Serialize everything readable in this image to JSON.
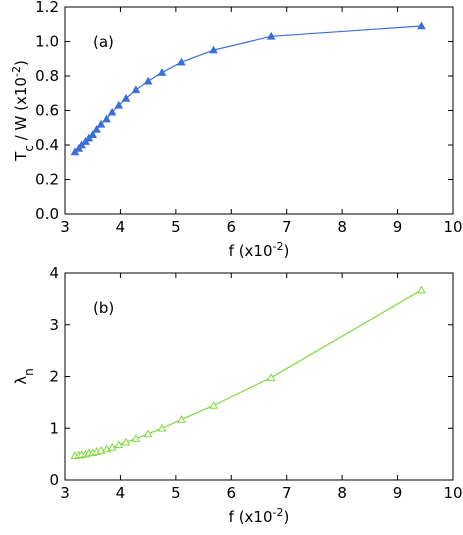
{
  "chart_data": [
    {
      "type": "line",
      "annotation": "(a)",
      "xlabel": [
        {
          "text": "f  (x10",
          "baseline": "normal"
        },
        {
          "text": "-2",
          "baseline": "super"
        },
        {
          "text": ")",
          "baseline": "normal"
        }
      ],
      "ylabel": [
        {
          "text": "T",
          "baseline": "normal"
        },
        {
          "text": "c",
          "baseline": "sub"
        },
        {
          "text": " / W  (x10",
          "baseline": "normal"
        },
        {
          "text": "-2",
          "baseline": "super"
        },
        {
          "text": ")",
          "baseline": "normal"
        }
      ],
      "x": [
        3.18,
        3.25,
        3.3,
        3.37,
        3.43,
        3.5,
        3.57,
        3.65,
        3.75,
        3.85,
        3.97,
        4.1,
        4.28,
        4.5,
        4.75,
        5.1,
        5.68,
        6.72,
        9.43
      ],
      "series": [
        {
          "color": "#3a6fd8",
          "marker": "filled-triangle",
          "values": [
            0.36,
            0.38,
            0.4,
            0.42,
            0.44,
            0.46,
            0.49,
            0.52,
            0.55,
            0.59,
            0.63,
            0.67,
            0.72,
            0.77,
            0.82,
            0.88,
            0.95,
            1.03,
            1.09
          ]
        }
      ],
      "xlim": [
        3,
        10
      ],
      "xticks": [
        3,
        4,
        5,
        6,
        7,
        8,
        9,
        10
      ],
      "ylim": [
        0,
        1.2
      ],
      "yticks": [
        {
          "value": 0,
          "label": "0.0"
        },
        {
          "value": 0.2,
          "label": "0.2"
        },
        {
          "value": 0.4,
          "label": "0.4"
        },
        {
          "value": 0.6,
          "label": "0.6"
        },
        {
          "value": 0.8,
          "label": "0.8"
        },
        {
          "value": 1,
          "label": "1.0"
        },
        {
          "value": 1.2,
          "label": "1.2"
        }
      ]
    },
    {
      "type": "line",
      "annotation": "(b)",
      "xlabel": [
        {
          "text": "f  (x10",
          "baseline": "normal"
        },
        {
          "text": "-2",
          "baseline": "super"
        },
        {
          "text": ")",
          "baseline": "normal"
        }
      ],
      "ylabel": [
        {
          "text": "λ",
          "baseline": "normal"
        },
        {
          "text": "n",
          "baseline": "sub"
        }
      ],
      "x": [
        3.18,
        3.25,
        3.3,
        3.37,
        3.43,
        3.5,
        3.57,
        3.65,
        3.75,
        3.85,
        3.97,
        4.1,
        4.28,
        4.5,
        4.75,
        5.1,
        5.68,
        6.72,
        9.43
      ],
      "series": [
        {
          "color": "#80d840",
          "marker": "open-triangle",
          "values": [
            0.47,
            0.48,
            0.49,
            0.5,
            0.52,
            0.53,
            0.55,
            0.57,
            0.6,
            0.63,
            0.68,
            0.73,
            0.8,
            0.89,
            1.0,
            1.17,
            1.44,
            1.98,
            3.67
          ]
        }
      ],
      "xlim": [
        3,
        10
      ],
      "xticks": [
        3,
        4,
        5,
        6,
        7,
        8,
        9,
        10
      ],
      "ylim": [
        0,
        4
      ],
      "yticks": [
        0,
        1,
        2,
        3,
        4
      ]
    }
  ]
}
